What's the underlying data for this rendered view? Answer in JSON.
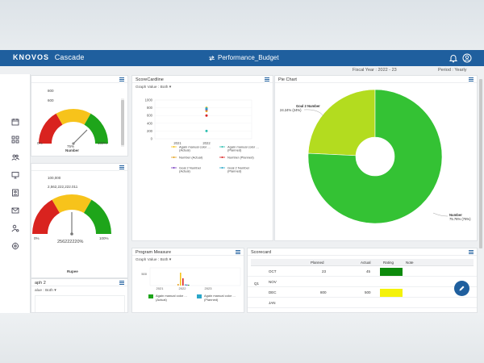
{
  "header": {
    "brand_main": "KNOVOS",
    "brand_sub": "Cascade",
    "page_title": "Performance_Budget",
    "icons": [
      "bell-icon",
      "user-icon"
    ]
  },
  "subbar": {
    "fiscal_year": "Fiscal Year : 2022 - 23",
    "period": "Period : Yearly"
  },
  "sidebar": {
    "icons": [
      "calendar-icon",
      "grid-icon",
      "users-icon",
      "monitor-icon",
      "badge-icon",
      "mail-icon",
      "user-settings-icon",
      "settings-icon"
    ]
  },
  "gauge1": {
    "top_label": "800",
    "second_label": "600",
    "min_label": "0%",
    "max_label": "100%",
    "center_pct": "75%",
    "center_label": "Number",
    "value_fraction": 0.75,
    "colors": [
      "#d9231f",
      "#f7c31b",
      "#1ea51a"
    ]
  },
  "gauge2": {
    "top_label": "100,000",
    "second_label": "2,562,222,222.011",
    "min_label": "0%",
    "max_label": "100%",
    "center_value": "256222220%",
    "footer_label": "Rupee",
    "value_fraction": 0.5,
    "colors": [
      "#d9231f",
      "#f7c31b",
      "#1ea51a"
    ]
  },
  "graph2": {
    "title": "aph 2",
    "select": "alue : Both"
  },
  "scorecardline": {
    "title": "ScoreCardline",
    "select": "Graph Value : Both",
    "chart_data": {
      "type": "scatter",
      "categories": [
        "2021",
        "2022"
      ],
      "ylim": [
        0,
        1000
      ],
      "yticks": [
        "1000",
        "800",
        "600",
        "400",
        "200",
        "0"
      ],
      "series": [
        {
          "name": "Again manual color ... (Actual)",
          "color": "#f7c31b",
          "values": [
            null,
            800
          ]
        },
        {
          "name": "Again manual color ... (Planned)",
          "color": "#2bbfb0",
          "values": [
            null,
            200
          ]
        },
        {
          "name": "Number (Actual)",
          "color": "#e3a322",
          "values": [
            null,
            720
          ]
        },
        {
          "name": "Number (Planned)",
          "color": "#d92424",
          "values": [
            null,
            600
          ]
        },
        {
          "name": "Goal 2 Number (Actual)",
          "color": "#7a3fc1",
          "values": [
            null,
            760
          ]
        },
        {
          "name": "Goal 2 Number (Planned)",
          "color": "#2aa7c9",
          "values": [
            null,
            780
          ]
        }
      ]
    }
  },
  "piechart": {
    "title": "Pie Chart",
    "chart_data": {
      "type": "pie",
      "slices": [
        {
          "name": "Goal 2 Number",
          "label": "24.24% (24%)",
          "value": 24.24,
          "color": "#b3dc1f"
        },
        {
          "name": "Number",
          "label": "75.76% (76%)",
          "value": 75.76,
          "color": "#34c234"
        }
      ]
    }
  },
  "program": {
    "title": "Program Measure",
    "select": "Graph Value : Both",
    "chart_data": {
      "type": "bar",
      "categories": [
        "2021",
        "2022",
        "2023"
      ],
      "ytick": "500",
      "series": [
        {
          "name": "Again manual color ... (Actual)",
          "color": "#1ea51a"
        },
        {
          "name": "Again manual color ... (Planned)",
          "color": "#2aa7c9"
        }
      ]
    }
  },
  "scorecard": {
    "title": "Scorecard",
    "headers": [
      "Planned",
      "Actual",
      "Rating",
      "Note"
    ],
    "quarter": "Q1",
    "rows": [
      {
        "month": "OCT",
        "planned": "23",
        "actual": "45",
        "rating_color": "#0c8a0c"
      },
      {
        "month": "NOV",
        "planned": "",
        "actual": "",
        "rating_color": ""
      },
      {
        "month": "DEC",
        "planned": "800",
        "actual": "500",
        "rating_color": "#f4f20a"
      },
      {
        "month": "JAN",
        "planned": "",
        "actual": "",
        "rating_color": ""
      }
    ]
  }
}
